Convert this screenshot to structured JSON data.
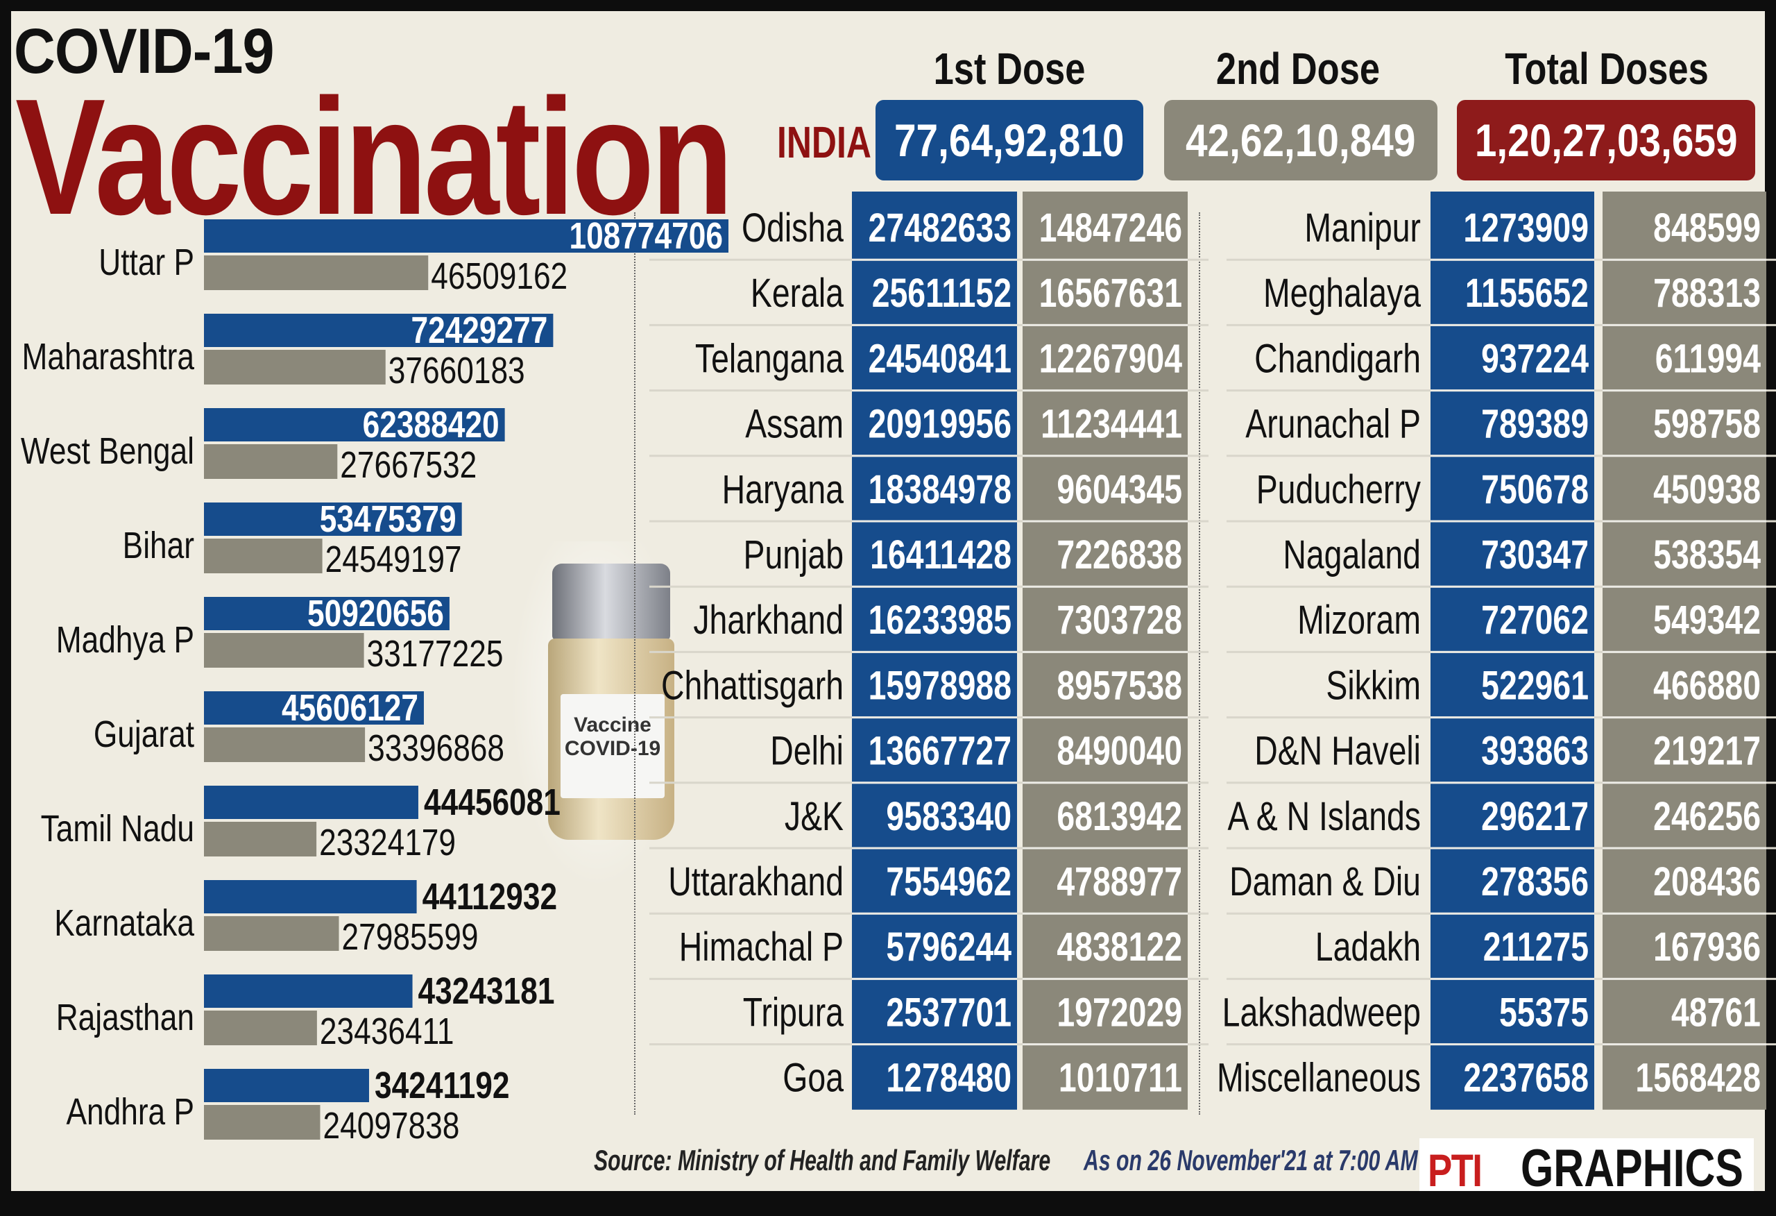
{
  "header": {
    "title_line1": "COVID-19",
    "title_line2": "Vaccination",
    "region": "INDIA",
    "col_first": "1st Dose",
    "col_second": "2nd Dose",
    "col_total": "Total Doses",
    "india_first": "77,64,92,810",
    "india_second": "42,62,10,849",
    "india_total": "1,20,27,03,659"
  },
  "vial_label": {
    "line1": "Vaccine",
    "line2": "COVID-19"
  },
  "footer": {
    "source": "Source: Ministry of Health and Family Welfare",
    "date": "As on 26 November'21 at 7:00 AM",
    "brand_logo": "PTI",
    "brand_text": "GRAPHICS"
  },
  "colors": {
    "first_dose": "#164c8c",
    "second_dose": "#8b887a",
    "title_red": "#8e1111",
    "total_red": "#8e1b1b"
  },
  "chart_data": [
    {
      "type": "bar",
      "orientation": "horizontal",
      "categories": [
        "Uttar P",
        "Maharashtra",
        "West Bengal",
        "Bihar",
        "Madhya P",
        "Gujarat",
        "Tamil Nadu",
        "Karnataka",
        "Rajasthan",
        "Andhra P"
      ],
      "series": [
        {
          "name": "1st Dose",
          "values": [
            108774706,
            72429277,
            62388420,
            53475379,
            50920656,
            45606127,
            44456081,
            44112932,
            43243181,
            34241192
          ]
        },
        {
          "name": "2nd Dose",
          "values": [
            46509162,
            37660183,
            27667532,
            24549197,
            33177225,
            33396868,
            23324179,
            27985599,
            23436411,
            24097838
          ]
        }
      ]
    },
    {
      "type": "table",
      "rows": [
        [
          "Odisha",
          "27482633",
          "14847246"
        ],
        [
          "Kerala",
          "25611152",
          "16567631"
        ],
        [
          "Telangana",
          "24540841",
          "12267904"
        ],
        [
          "Assam",
          "20919956",
          "11234441"
        ],
        [
          "Haryana",
          "18384978",
          "9604345"
        ],
        [
          "Punjab",
          "16411428",
          "7226838"
        ],
        [
          "Jharkhand",
          "16233985",
          "7303728"
        ],
        [
          "Chhattisgarh",
          "15978988",
          "8957538"
        ],
        [
          "Delhi",
          "13667727",
          "8490040"
        ],
        [
          "J&K",
          "9583340",
          "6813942"
        ],
        [
          "Uttarakhand",
          "7554962",
          "4788977"
        ],
        [
          "Himachal P",
          "5796244",
          "4838122"
        ],
        [
          "Tripura",
          "2537701",
          "1972029"
        ],
        [
          "Goa",
          "1278480",
          "1010711"
        ]
      ]
    },
    {
      "type": "table",
      "rows": [
        [
          "Manipur",
          "1273909",
          "848599"
        ],
        [
          "Meghalaya",
          "1155652",
          "788313"
        ],
        [
          "Chandigarh",
          "937224",
          "611994"
        ],
        [
          "Arunachal P",
          "789389",
          "598758"
        ],
        [
          "Puducherry",
          "750678",
          "450938"
        ],
        [
          "Nagaland",
          "730347",
          "538354"
        ],
        [
          "Mizoram",
          "727062",
          "549342"
        ],
        [
          "Sikkim",
          "522961",
          "466880"
        ],
        [
          "D&N Haveli",
          "393863",
          "219217"
        ],
        [
          "A & N Islands",
          "296217",
          "246256"
        ],
        [
          "Daman & Diu",
          "278356",
          "208436"
        ],
        [
          "Ladakh",
          "211275",
          "167936"
        ],
        [
          "Lakshadweep",
          "55375",
          "48761"
        ],
        [
          "Miscellaneous",
          "2237658",
          "1568428"
        ]
      ]
    }
  ]
}
